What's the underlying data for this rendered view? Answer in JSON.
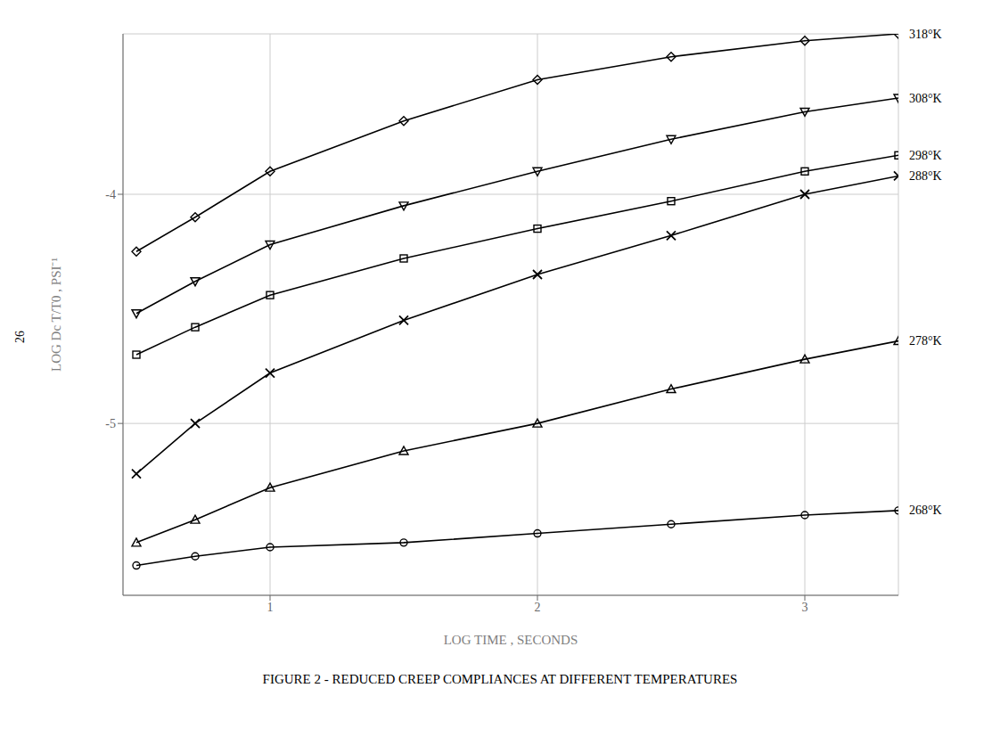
{
  "chart_data": {
    "type": "line",
    "title": "FIGURE  2  -  REDUCED  CREEP  COMPLIANCES  AT  DIFFERENT  TEMPERATURES",
    "x_label": "LOG  TIME , SECONDS",
    "y_label": "LOG  Dc  T/T0  ,  PSI⁻¹",
    "x": [
      0.5,
      0.72,
      1.0,
      1.5,
      2.0,
      2.5,
      3.0,
      3.35
    ],
    "xlim": [
      0.45,
      3.35
    ],
    "ylim": [
      -5.75,
      -3.3
    ],
    "xticks": [
      1,
      2,
      3
    ],
    "yticks": [
      -5,
      -4
    ],
    "grid": true,
    "series": [
      {
        "name": "318°K",
        "color": "#000000",
        "marker": "diamond",
        "values": [
          -4.25,
          -4.1,
          -3.9,
          -3.68,
          -3.5,
          -3.4,
          -3.33,
          -3.3
        ]
      },
      {
        "name": "308°K",
        "color": "#000000",
        "marker": "triangle-down",
        "values": [
          -4.52,
          -4.38,
          -4.22,
          -4.05,
          -3.9,
          -3.76,
          -3.64,
          -3.58
        ]
      },
      {
        "name": "298°K",
        "color": "#000000",
        "marker": "square",
        "values": [
          -4.7,
          -4.58,
          -4.44,
          -4.28,
          -4.15,
          -4.03,
          -3.9,
          -3.83
        ]
      },
      {
        "name": "288°K",
        "color": "#000000",
        "marker": "x",
        "values": [
          -5.22,
          -5.0,
          -4.78,
          -4.55,
          -4.35,
          -4.18,
          -4.0,
          -3.92
        ]
      },
      {
        "name": "278°K",
        "color": "#000000",
        "marker": "triangle",
        "values": [
          -5.52,
          -5.42,
          -5.28,
          -5.12,
          -5.0,
          -4.85,
          -4.72,
          -4.64
        ]
      },
      {
        "name": "268°K",
        "color": "#000000",
        "marker": "circle",
        "values": [
          -5.62,
          -5.58,
          -5.54,
          -5.52,
          -5.48,
          -5.44,
          -5.4,
          -5.38
        ]
      }
    ],
    "annotations": [
      {
        "text": "26"
      }
    ]
  }
}
